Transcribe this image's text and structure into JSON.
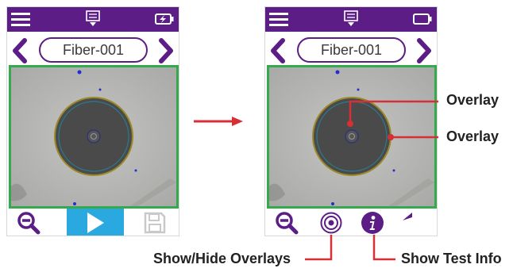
{
  "left_screen": {
    "fiber_name": "Fiber-001",
    "icons": {
      "menu": "menu-icon",
      "status": "download-tray-icon",
      "battery": "battery-charging-icon",
      "prev": "chevron-left-icon",
      "next": "chevron-right-icon",
      "zoom": "zoom-out-icon",
      "play": "play-icon",
      "save": "save-icon"
    }
  },
  "right_screen": {
    "fiber_name": "Fiber-001",
    "icons": {
      "menu": "menu-icon",
      "status": "download-tray-icon",
      "battery": "battery-icon",
      "prev": "chevron-left-icon",
      "next": "chevron-right-icon",
      "zoom": "zoom-out-icon",
      "overlay_toggle": "target-icon",
      "info": "info-icon",
      "back": "back-arrow-icon"
    }
  },
  "callouts": {
    "overlay_core": "Overlay",
    "overlay_cladding": "Overlay",
    "show_hide_overlays": "Show/Hide Overlays",
    "show_test_info": "Show Test Info"
  },
  "colors": {
    "statusbar": "#5c1e86",
    "accent_purple": "#5c1e86",
    "image_border": "#35a94b",
    "play_button": "#2aa9e0",
    "callout_red": "#d62f35"
  }
}
